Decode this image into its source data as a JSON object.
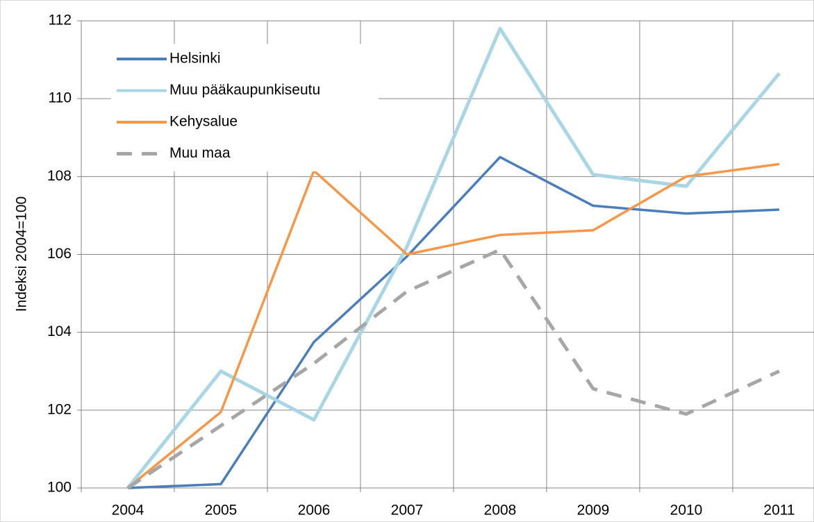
{
  "chart_data": {
    "type": "line",
    "ylabel": "Indeksi 2004=100",
    "categories": [
      "2004",
      "2005",
      "2006",
      "2007",
      "2008",
      "2009",
      "2010",
      "2011"
    ],
    "series": [
      {
        "name": "Helsinki",
        "color": "#4a7ebb",
        "values": [
          100,
          100.1,
          103.75,
          105.95,
          108.5,
          107.25,
          107.05,
          107.15
        ]
      },
      {
        "name": "Muu pääkaupunkiseutu",
        "color": "#a9d6e5",
        "values": [
          100,
          103,
          101.75,
          106.2,
          111.8,
          108.05,
          107.75,
          110.65
        ]
      },
      {
        "name": "Kehysalue",
        "color": "#f79646",
        "values": [
          100,
          101.95,
          108.15,
          106,
          106.5,
          106.62,
          108,
          108.32
        ]
      },
      {
        "name": "Muu maa",
        "color": "#a6a6a6",
        "dashed": true,
        "values": [
          100,
          101.6,
          103.2,
          105.05,
          106.12,
          102.55,
          101.9,
          103
        ]
      }
    ],
    "ylim": [
      100,
      112
    ],
    "yticks": [
      100,
      102,
      104,
      106,
      108,
      110,
      112
    ],
    "grid": true,
    "legend": "upper left"
  }
}
